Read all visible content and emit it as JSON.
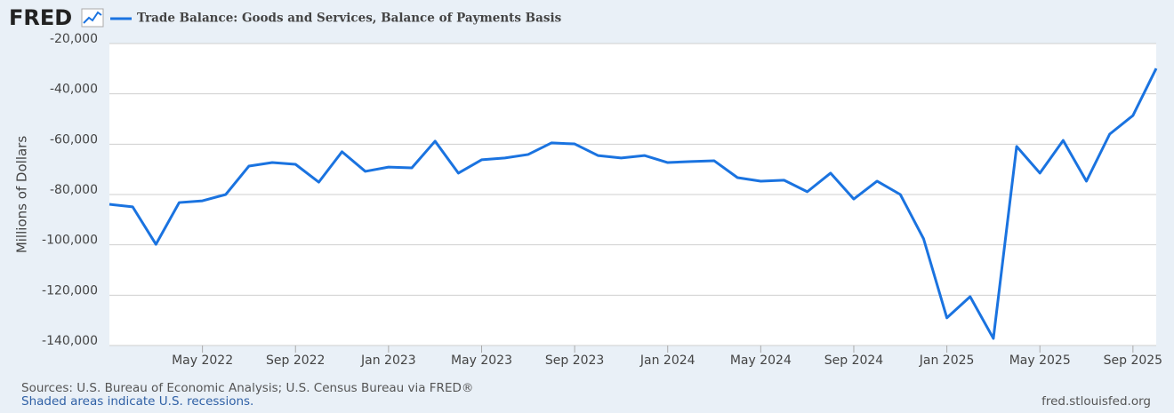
{
  "logo": "FRED",
  "chart_data": {
    "type": "line",
    "title": "Trade Balance: Goods and Services, Balance of Payments Basis",
    "y_label": "Millions of Dollars",
    "x": [
      "2022-01",
      "2022-02",
      "2022-03",
      "2022-04",
      "2022-05",
      "2022-06",
      "2022-07",
      "2022-08",
      "2022-09",
      "2022-10",
      "2022-11",
      "2022-12",
      "2023-01",
      "2023-02",
      "2023-03",
      "2023-04",
      "2023-05",
      "2023-06",
      "2023-07",
      "2023-08",
      "2023-09",
      "2023-10",
      "2023-11",
      "2023-12",
      "2024-01",
      "2024-02",
      "2024-03",
      "2024-04",
      "2024-05",
      "2024-06",
      "2024-07",
      "2024-08",
      "2024-09",
      "2024-10",
      "2024-11",
      "2024-12",
      "2025-01",
      "2025-02",
      "2025-03",
      "2025-04",
      "2025-05",
      "2025-06",
      "2025-07",
      "2025-08",
      "2025-09",
      "2025-10"
    ],
    "series": [
      {
        "name": "Trade Balance: Goods and Services, Balance of Payments Basis",
        "color": "#1a73e0",
        "values": [
          -83900,
          -84900,
          -99800,
          -83200,
          -82500,
          -80000,
          -68700,
          -67300,
          -68000,
          -75100,
          -63000,
          -70800,
          -69100,
          -69400,
          -58800,
          -71500,
          -66200,
          -65500,
          -64100,
          -59500,
          -59900,
          -64500,
          -65500,
          -64500,
          -67300,
          -66900,
          -66600,
          -73300,
          -74700,
          -74300,
          -78900,
          -71500,
          -81800,
          -74700,
          -80000,
          -97600,
          -129000,
          -120600,
          -137200,
          -60900,
          -71500,
          -58500,
          -74700,
          -56000,
          -48600,
          -29900
        ]
      }
    ],
    "xlim": [
      "2022-01",
      "2025-10"
    ],
    "xticks": [
      {
        "value": "2022-05",
        "label": "May 2022"
      },
      {
        "value": "2022-09",
        "label": "Sep 2022"
      },
      {
        "value": "2023-01",
        "label": "Jan 2023"
      },
      {
        "value": "2023-05",
        "label": "May 2023"
      },
      {
        "value": "2023-09",
        "label": "Sep 2023"
      },
      {
        "value": "2024-01",
        "label": "Jan 2024"
      },
      {
        "value": "2024-05",
        "label": "May 2024"
      },
      {
        "value": "2024-09",
        "label": "Sep 2024"
      },
      {
        "value": "2025-01",
        "label": "Jan 2025"
      },
      {
        "value": "2025-05",
        "label": "May 2025"
      },
      {
        "value": "2025-09",
        "label": "Sep 2025"
      }
    ],
    "ylim": [
      -140000,
      -20000
    ],
    "yticks": [
      {
        "value": -20000,
        "label": "-20,000"
      },
      {
        "value": -40000,
        "label": "-40,000"
      },
      {
        "value": -60000,
        "label": "-60,000"
      },
      {
        "value": -80000,
        "label": "-80,000"
      },
      {
        "value": -100000,
        "label": "-100,000"
      },
      {
        "value": -120000,
        "label": "-120,000"
      },
      {
        "value": -140000,
        "label": "-140,000"
      }
    ],
    "grid": true
  },
  "footer": {
    "sources": "Sources: U.S. Bureau of Economic Analysis; U.S. Census Bureau via FRED®",
    "recessions": "Shaded areas indicate U.S. recessions.",
    "site": "fred.stlouisfed.org"
  }
}
